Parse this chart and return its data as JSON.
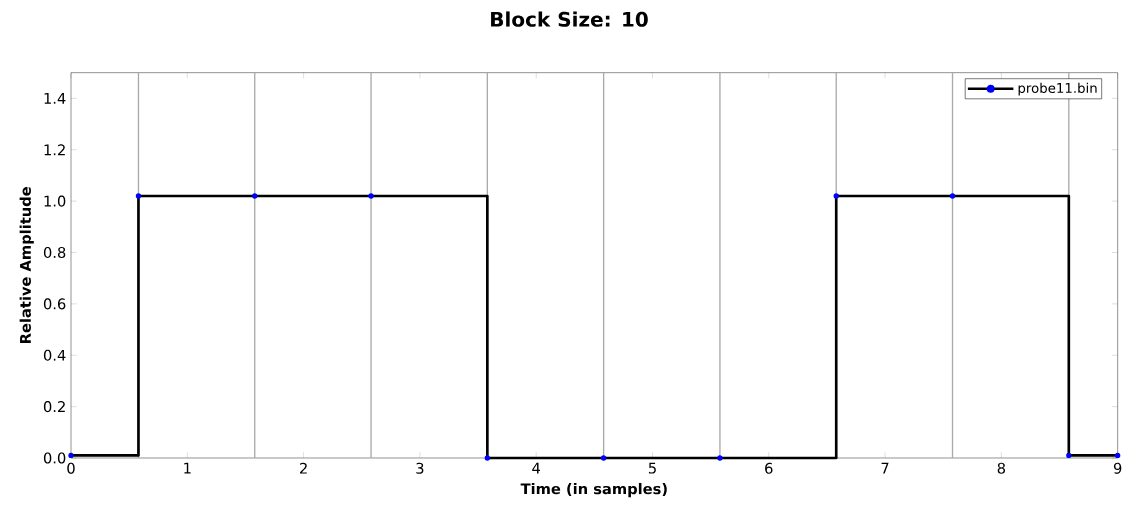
{
  "chart_data": {
    "type": "step",
    "title": "Block Size: 10",
    "xlabel": "Time (in samples)",
    "ylabel": "Relative Amplitude",
    "x": [
      0,
      0.58,
      1.58,
      2.58,
      3.58,
      4.58,
      5.58,
      6.58,
      7.58,
      8.58,
      9
    ],
    "series": [
      {
        "name": "probe11.bin",
        "color": "#000000",
        "values": [
          0.01,
          1.02,
          1.02,
          1.02,
          0,
          0,
          0,
          1.02,
          1.02,
          0.01,
          0.01
        ]
      }
    ],
    "xlim": [
      0,
      9
    ],
    "ylim": [
      0,
      1.5
    ],
    "xticks": [
      0,
      1,
      2,
      3,
      4,
      5,
      6,
      7,
      8,
      9
    ],
    "yticks": [
      {
        "value": 0,
        "label": "0.0"
      },
      {
        "value": 0.2,
        "label": "0.2"
      },
      {
        "value": 0.4,
        "label": "0.4"
      },
      {
        "value": 0.6,
        "label": "0.6"
      },
      {
        "value": 0.8,
        "label": "0.8"
      },
      {
        "value": 1.0,
        "label": "1.0"
      },
      {
        "value": 1.2,
        "label": "1.2"
      },
      {
        "value": 1.4,
        "label": "1.4"
      }
    ],
    "ref_lines": [
      {
        "axis": "x",
        "value": 0.58,
        "color": "#aaaaaa"
      },
      {
        "axis": "x",
        "value": 1.58,
        "color": "#aaaaaa"
      },
      {
        "axis": "x",
        "value": 2.58,
        "color": "#aaaaaa"
      },
      {
        "axis": "x",
        "value": 3.58,
        "color": "#aaaaaa"
      },
      {
        "axis": "x",
        "value": 4.58,
        "color": "#aaaaaa"
      },
      {
        "axis": "x",
        "value": 5.58,
        "color": "#aaaaaa"
      },
      {
        "axis": "x",
        "value": 6.58,
        "color": "#aaaaaa"
      },
      {
        "axis": "x",
        "value": 7.58,
        "color": "#aaaaaa"
      },
      {
        "axis": "x",
        "value": 8.58,
        "color": "#aaaaaa"
      }
    ],
    "legend": "top right",
    "marker": "circle"
  }
}
